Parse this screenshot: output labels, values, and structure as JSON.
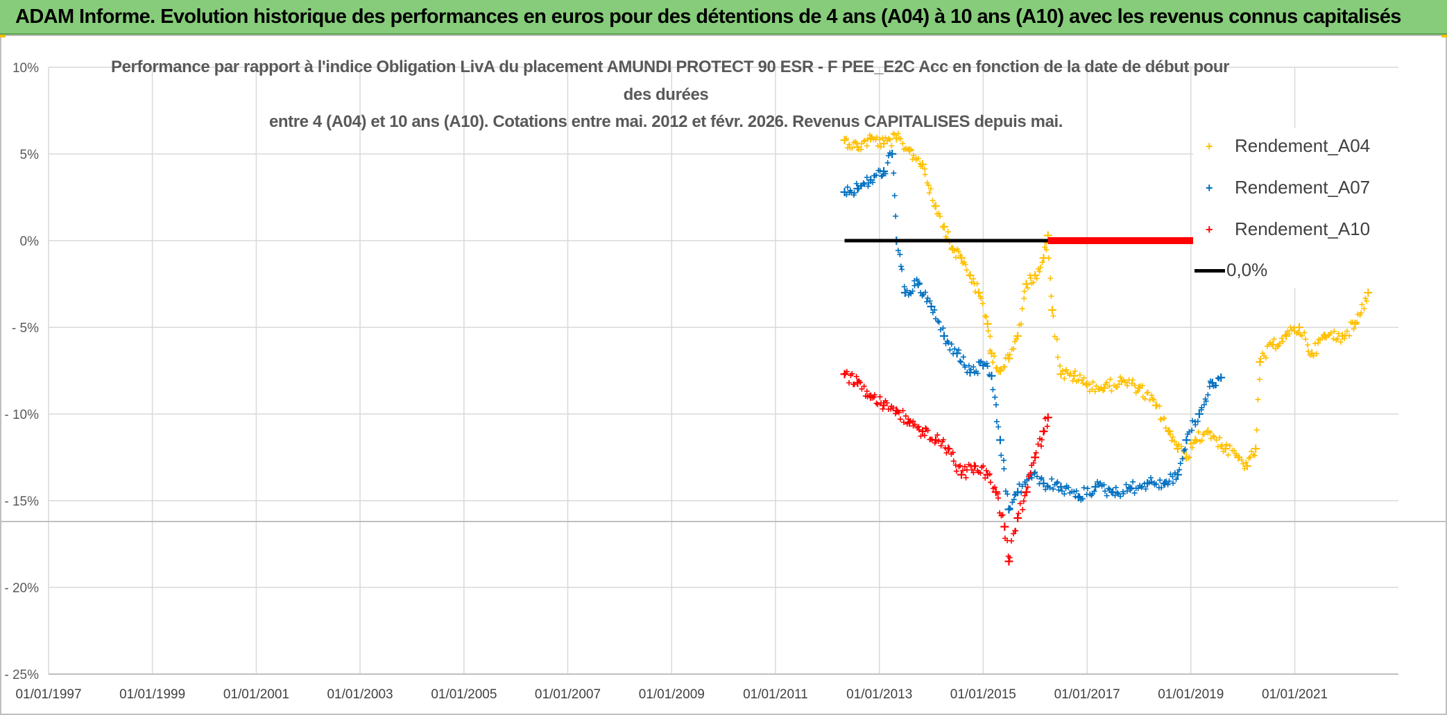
{
  "banner": {
    "title": "ADAM Informe. Evolution historique des performances en euros pour des détentions de 4 ans (A04) à 10 ans (A10) avec les revenus connus capitalisés"
  },
  "chart_data": {
    "type": "scatter",
    "title_lines": [
      "Performance par rapport à l'indice Obligation LivA  du placement AMUNDI PROTECT 90 ESR - F PEE_E2C Acc en fonction de la date de début pour",
      "des durées",
      "entre 4 (A04) et 10 ans (A10). Cotations entre mai. 2012 et févr. 2026. Revenus CAPITALISES depuis mai."
    ],
    "x_axis": {
      "type": "date",
      "range": [
        "1997-01-01",
        "2022-12-31"
      ],
      "tick_labels": [
        "01/01/1997",
        "01/01/1999",
        "01/01/2001",
        "01/01/2003",
        "01/01/2005",
        "01/01/2007",
        "01/01/2009",
        "01/01/2011",
        "01/01/2013",
        "01/01/2015",
        "01/01/2017",
        "01/01/2019",
        "01/01/2021"
      ]
    },
    "y_axis": {
      "range": [
        -25,
        10
      ],
      "ticks": [
        10,
        5,
        0,
        -5,
        -10,
        -15,
        -20,
        -25
      ],
      "tick_labels": [
        "10%",
        "5%",
        "0%",
        "- 5%",
        "- 10%",
        "- 15%",
        "- 20%",
        "- 25%"
      ]
    },
    "grid": true,
    "legend_position": "right",
    "series": [
      {
        "name": "Rendement_A04",
        "color": "#ffc000",
        "marker": "plus",
        "points": [
          [
            "2012-05-01",
            5.8
          ],
          [
            "2012-08-01",
            5.4
          ],
          [
            "2012-11-01",
            5.9
          ],
          [
            "2013-02-01",
            5.6
          ],
          [
            "2013-05-01",
            5.9
          ],
          [
            "2013-08-01",
            5.2
          ],
          [
            "2013-11-01",
            4.4
          ],
          [
            "2014-02-01",
            2.0
          ],
          [
            "2014-04-01",
            0.8
          ],
          [
            "2014-06-01",
            -0.5
          ],
          [
            "2014-08-01",
            -1.0
          ],
          [
            "2014-10-01",
            -2.0
          ],
          [
            "2014-12-01",
            -3.0
          ],
          [
            "2015-02-01",
            -4.8
          ],
          [
            "2015-03-01",
            -6.5
          ],
          [
            "2015-05-01",
            -7.5
          ],
          [
            "2015-07-01",
            -6.8
          ],
          [
            "2015-09-01",
            -5.5
          ],
          [
            "2015-11-01",
            -2.5
          ],
          [
            "2016-01-01",
            -2.0
          ],
          [
            "2016-03-01",
            -1.0
          ],
          [
            "2016-04-01",
            0.3
          ],
          [
            "2016-05-01",
            -4.0
          ],
          [
            "2016-07-01",
            -7.7
          ],
          [
            "2016-10-01",
            -7.8
          ],
          [
            "2017-01-01",
            -8.3
          ],
          [
            "2017-05-01",
            -8.5
          ],
          [
            "2017-09-01",
            -8.1
          ],
          [
            "2018-01-01",
            -8.5
          ],
          [
            "2018-05-01",
            -9.5
          ],
          [
            "2018-08-01",
            -11.0
          ],
          [
            "2018-10-01",
            -12.0
          ],
          [
            "2018-12-01",
            -12.5
          ],
          [
            "2019-02-01",
            -11.5
          ],
          [
            "2019-05-01",
            -11.0
          ],
          [
            "2019-09-01",
            -12.0
          ],
          [
            "2019-12-01",
            -12.5
          ],
          [
            "2020-02-01",
            -13.0
          ],
          [
            "2020-04-01",
            -12.0
          ],
          [
            "2020-05-01",
            -7.0
          ],
          [
            "2020-08-01",
            -6.0
          ],
          [
            "2020-11-01",
            -5.5
          ],
          [
            "2021-02-01",
            -5.0
          ],
          [
            "2021-05-01",
            -6.5
          ],
          [
            "2021-08-01",
            -5.5
          ],
          [
            "2021-12-01",
            -5.5
          ],
          [
            "2022-03-01",
            -4.8
          ],
          [
            "2022-06-01",
            -3.0
          ]
        ]
      },
      {
        "name": "Rendement_A07",
        "color": "#0070c0",
        "marker": "plus",
        "points": [
          [
            "2012-05-01",
            2.8
          ],
          [
            "2012-08-01",
            3.0
          ],
          [
            "2012-11-01",
            3.5
          ],
          [
            "2013-02-01",
            4.0
          ],
          [
            "2013-04-01",
            5.0
          ],
          [
            "2013-05-01",
            0.0
          ],
          [
            "2013-07-01",
            -3.0
          ],
          [
            "2013-10-01",
            -2.5
          ],
          [
            "2014-01-01",
            -3.8
          ],
          [
            "2014-04-01",
            -5.5
          ],
          [
            "2014-07-01",
            -6.5
          ],
          [
            "2014-10-01",
            -7.6
          ],
          [
            "2015-01-01",
            -7.2
          ],
          [
            "2015-03-01",
            -7.8
          ],
          [
            "2015-05-01",
            -11.5
          ],
          [
            "2015-07-01",
            -15.5
          ],
          [
            "2015-09-01",
            -14.5
          ],
          [
            "2015-12-01",
            -13.5
          ],
          [
            "2016-03-01",
            -14.0
          ],
          [
            "2016-07-01",
            -14.2
          ],
          [
            "2016-11-01",
            -14.8
          ],
          [
            "2017-03-01",
            -14.2
          ],
          [
            "2017-07-01",
            -14.5
          ],
          [
            "2017-11-01",
            -14.3
          ],
          [
            "2018-03-01",
            -14.0
          ],
          [
            "2018-07-01",
            -14.0
          ],
          [
            "2018-10-01",
            -13.5
          ],
          [
            "2018-12-01",
            -11.5
          ],
          [
            "2019-03-01",
            -10.0
          ],
          [
            "2019-06-01",
            -8.2
          ],
          [
            "2019-08-01",
            -7.9
          ]
        ]
      },
      {
        "name": "Rendement_A10",
        "color": "#ff0000",
        "marker": "plus",
        "points": [
          [
            "2012-05-01",
            -7.7
          ],
          [
            "2012-08-01",
            -8.2
          ],
          [
            "2012-11-01",
            -9.0
          ],
          [
            "2013-02-01",
            -9.5
          ],
          [
            "2013-05-01",
            -9.8
          ],
          [
            "2013-08-01",
            -10.5
          ],
          [
            "2013-11-01",
            -11.0
          ],
          [
            "2014-02-01",
            -11.5
          ],
          [
            "2014-05-01",
            -12.0
          ],
          [
            "2014-08-01",
            -13.5
          ],
          [
            "2014-11-01",
            -13.0
          ],
          [
            "2015-02-01",
            -13.5
          ],
          [
            "2015-04-01",
            -14.5
          ],
          [
            "2015-06-01",
            -16.5
          ],
          [
            "2015-07-01",
            -18.5
          ],
          [
            "2015-09-01",
            -16.0
          ],
          [
            "2015-11-01",
            -14.5
          ],
          [
            "2016-01-01",
            -12.5
          ],
          [
            "2016-03-01",
            -11.0
          ],
          [
            "2016-04-01",
            -10.2
          ]
        ]
      },
      {
        "name": "0,0%",
        "color": "#000000",
        "marker": "line",
        "points": [
          [
            "2012-05-01",
            0
          ],
          [
            "2016-04-01",
            0
          ]
        ]
      },
      {
        "name": "",
        "color": "#ff0000",
        "marker": "line",
        "points": [
          [
            "2016-04-01",
            0
          ],
          [
            "2022-12-01",
            0
          ]
        ]
      }
    ]
  }
}
